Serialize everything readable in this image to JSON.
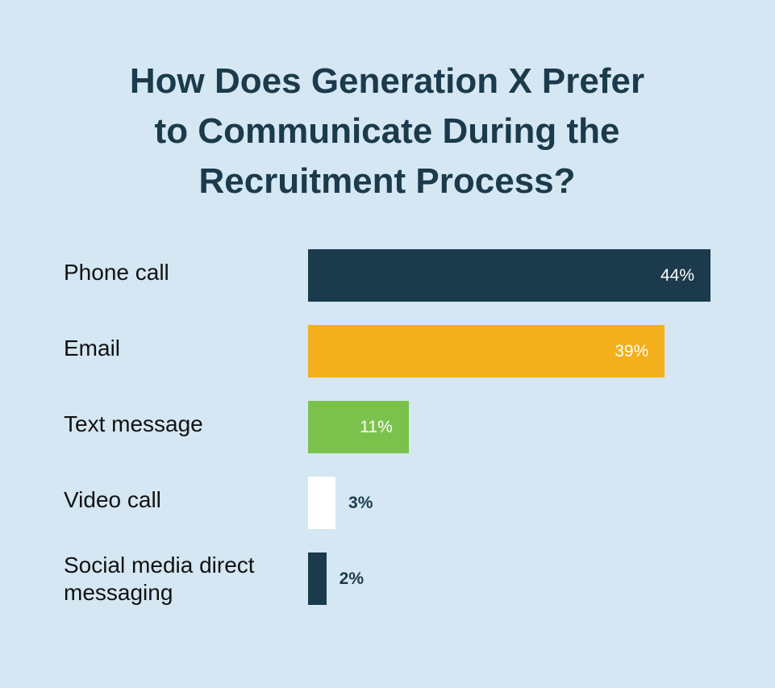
{
  "chart_data": {
    "type": "bar",
    "orientation": "horizontal",
    "title_lines": [
      "How Does Generation X Prefer",
      "to Communicate During the",
      "Recruitment Process?"
    ],
    "categories": [
      "Phone call",
      "Email",
      "Text message",
      "Video call",
      "Social media direct messaging"
    ],
    "values": [
      44,
      39,
      11,
      3,
      2
    ],
    "value_labels": [
      "44%",
      "39%",
      "11%",
      "3%",
      "2%"
    ],
    "colors": [
      "#1b3a4b",
      "#f3af1c",
      "#7bc24c",
      "#ffffff",
      "#1b3a4b"
    ],
    "xlim": [
      0,
      44
    ],
    "grid": false,
    "legend": "none"
  },
  "colors": {
    "background": "#d4e7f3",
    "title": "#1b3a4b"
  }
}
